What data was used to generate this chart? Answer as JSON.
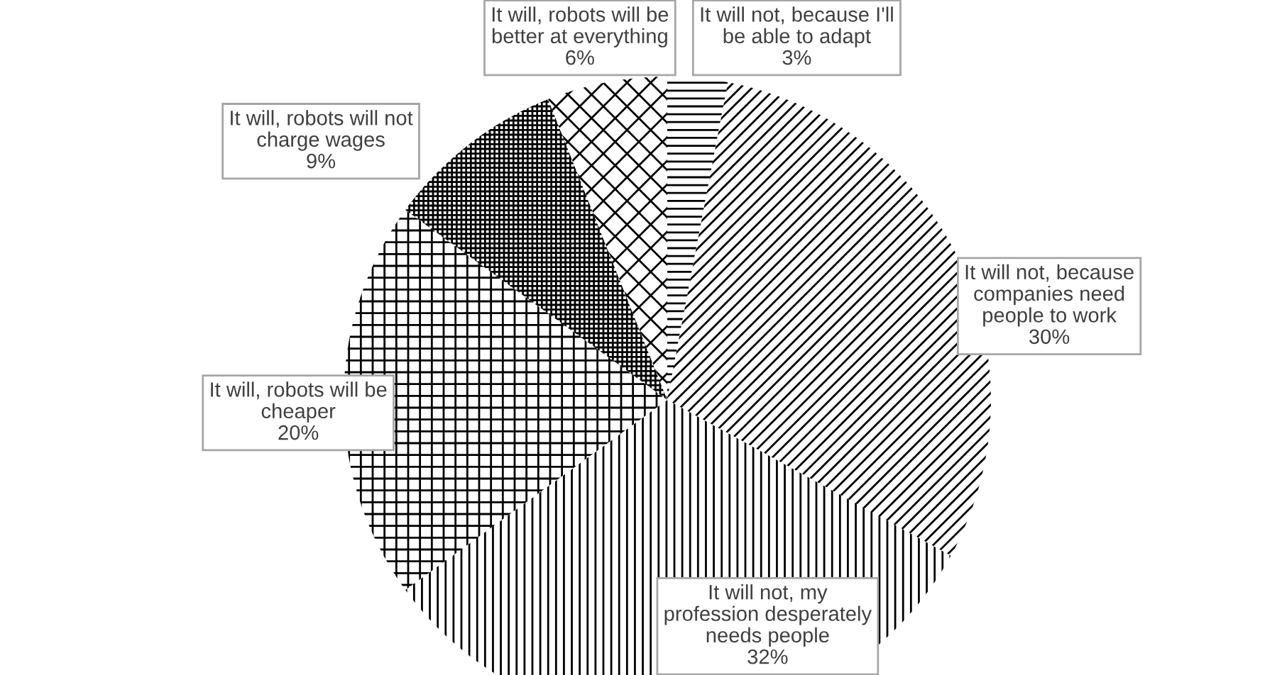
{
  "chart_data": {
    "type": "pie",
    "categories": [
      "It will not, because I'll\nbe able to adapt",
      "It will not, because\ncompanies need\npeople to work",
      "It will not, my\nprofession desperately\nneeds people",
      "It will, robots will be\ncheaper",
      "It will, robots will not\ncharge wages",
      "It will, robots will be\nbetter at everything"
    ],
    "values": [
      3,
      30,
      32,
      20,
      9,
      6
    ],
    "value_labels": [
      "3%",
      "30%",
      "32%",
      "20%",
      "9%",
      "6%"
    ],
    "colors": [
      "#ffffff",
      "#ffffff",
      "#ffffff",
      "#ffffff",
      "#ffffff",
      "#ffffff"
    ]
  }
}
